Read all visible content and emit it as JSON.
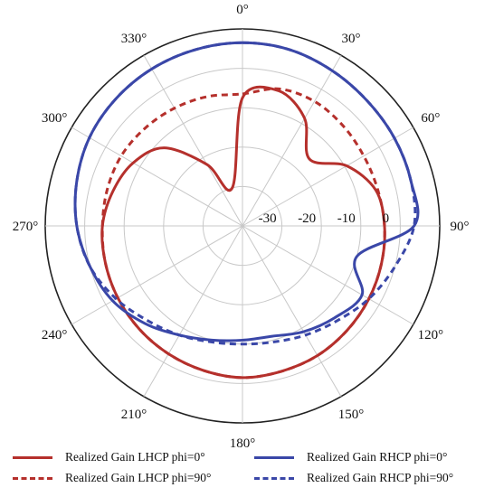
{
  "chart_data": {
    "type": "polar-line",
    "title": "",
    "angle_ticks": [
      "0°",
      "30°",
      "60°",
      "90°",
      "120°",
      "150°",
      "180°",
      "210°",
      "240°",
      "270°",
      "300°",
      "330°"
    ],
    "radial_ticks": [
      "-30",
      "-20",
      "-10",
      "0"
    ],
    "rlim": [
      -40,
      10
    ],
    "grid": true,
    "angle_direction": "clockwise, 0° at top",
    "theta": [
      0,
      15,
      30,
      45,
      60,
      75,
      90,
      105,
      120,
      135,
      150,
      165,
      180,
      195,
      210,
      225,
      240,
      255,
      270,
      285,
      300,
      315,
      330,
      345
    ],
    "series": [
      {
        "name": "Realized Gain LHCP phi=0°",
        "color": "#b5302c",
        "style": "solid",
        "values": [
          -7.5,
          -4.5,
          -8.5,
          -16,
          -9.5,
          -5,
          -4,
          -3.5,
          -3,
          -2.5,
          -2,
          -1.8,
          -1.5,
          -2,
          -2.5,
          -3,
          -3.5,
          -4,
          -4.5,
          -6,
          -8,
          -12,
          -22,
          -30
        ]
      },
      {
        "name": "Realized Gain LHCP phi=90°",
        "color": "#b5302c",
        "style": "dashed",
        "values": [
          -6.5,
          -4,
          -3.5,
          -4,
          -4.5,
          -4.5,
          -4,
          -3.5,
          -3,
          -2.5,
          -2,
          -1.8,
          -1.5,
          -2,
          -2.5,
          -3,
          -3.5,
          -4,
          -4.5,
          -4.5,
          -4.5,
          -5,
          -5.5,
          -6
        ]
      },
      {
        "name": "Realized Gain RHCP phi=0°",
        "color": "#3a47a8",
        "style": "solid",
        "values": [
          6.5,
          6.3,
          5.5,
          4.8,
          4.5,
          4.2,
          3.5,
          -10,
          -5,
          -7,
          -9,
          -11,
          -11,
          -10,
          -8,
          -5,
          -2,
          0,
          2,
          3.5,
          4.8,
          5.5,
          6,
          6.3
        ]
      },
      {
        "name": "Realized Gain RHCP phi=90°",
        "color": "#3a47a8",
        "style": "dashed",
        "values": [
          6.5,
          6.3,
          5.5,
          4.8,
          4.5,
          4.2,
          3.5,
          0,
          -3,
          -6,
          -8,
          -9.5,
          -10,
          -9.5,
          -8,
          -6,
          -3,
          0,
          2,
          3.5,
          4.8,
          5.5,
          6,
          6.3
        ]
      }
    ]
  }
}
